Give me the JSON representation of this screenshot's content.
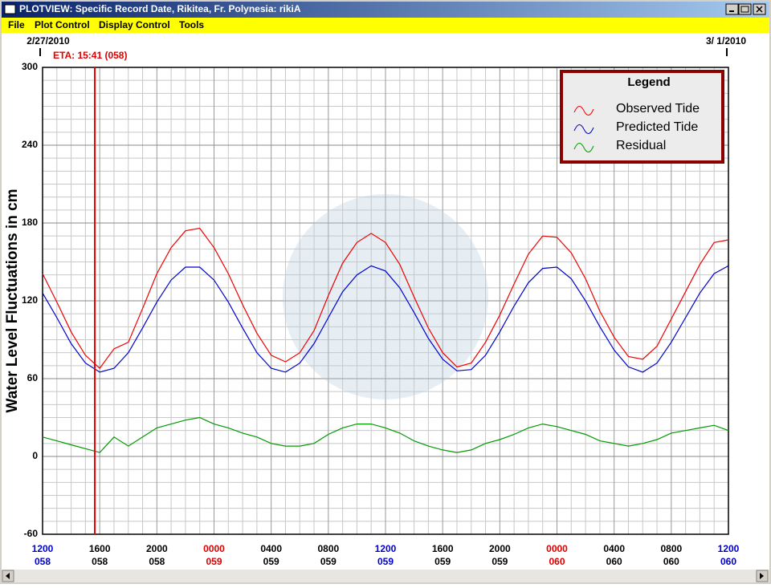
{
  "window": {
    "title": "PLOTVIEW: Specific Record Date, Rikitea, Fr. Polynesia: rikiA"
  },
  "menu": [
    "File",
    "Plot Control",
    "Display Control",
    "Tools"
  ],
  "dates": {
    "left": "2/27/2010",
    "right": "3/ 1/2010"
  },
  "annotation": "ETA: 15:41 (058)",
  "chart_data": {
    "type": "line",
    "ylabel": "Water Level Fluctuations in cm",
    "ylim": [
      -60,
      300
    ],
    "yticks": [
      -60,
      0,
      60,
      120,
      180,
      240,
      300
    ],
    "grid": true,
    "legend": {
      "title": "Legend",
      "position": "upper right"
    },
    "categories": [
      {
        "time": "1200",
        "day": "058",
        "color": "#0000cc"
      },
      null,
      null,
      null,
      {
        "time": "1600",
        "day": "058",
        "color": "#000000"
      },
      null,
      null,
      null,
      {
        "time": "2000",
        "day": "058",
        "color": "#000000"
      },
      null,
      null,
      null,
      {
        "time": "0000",
        "day": "059",
        "color": "#dd0000"
      },
      null,
      null,
      null,
      {
        "time": "0400",
        "day": "059",
        "color": "#000000"
      },
      null,
      null,
      null,
      {
        "time": "0800",
        "day": "059",
        "color": "#000000"
      },
      null,
      null,
      null,
      {
        "time": "1200",
        "day": "059",
        "color": "#0000cc"
      },
      null,
      null,
      null,
      {
        "time": "1600",
        "day": "059",
        "color": "#000000"
      },
      null,
      null,
      null,
      {
        "time": "2000",
        "day": "059",
        "color": "#000000"
      },
      null,
      null,
      null,
      {
        "time": "0000",
        "day": "060",
        "color": "#dd0000"
      },
      null,
      null,
      null,
      {
        "time": "0400",
        "day": "060",
        "color": "#000000"
      },
      null,
      null,
      null,
      {
        "time": "0800",
        "day": "060",
        "color": "#000000"
      },
      null,
      null,
      null,
      {
        "time": "1200",
        "day": "060",
        "color": "#0000cc"
      }
    ],
    "series": [
      {
        "name": "Observed Tide",
        "color": "#ee0000",
        "values": [
          141,
          119,
          96,
          78,
          68,
          83,
          88,
          114,
          141,
          161,
          174,
          176,
          161,
          141,
          117,
          95,
          78,
          73,
          80,
          97,
          124,
          149,
          165,
          172,
          165,
          148,
          123,
          99,
          80,
          69,
          72,
          88,
          109,
          133,
          156,
          170,
          169,
          157,
          137,
          112,
          92,
          77,
          75,
          85,
          106,
          127,
          148,
          165,
          167
        ]
      },
      {
        "name": "Predicted Tide",
        "color": "#0000cc",
        "values": [
          126,
          107,
          87,
          72,
          65,
          68,
          80,
          99,
          119,
          136,
          146,
          146,
          136,
          119,
          99,
          80,
          68,
          65,
          72,
          87,
          107,
          127,
          140,
          147,
          143,
          130,
          111,
          91,
          75,
          66,
          67,
          78,
          96,
          116,
          134,
          145,
          146,
          137,
          120,
          100,
          82,
          69,
          65,
          72,
          88,
          107,
          126,
          141,
          147
        ]
      },
      {
        "name": "Residual",
        "color": "#009900",
        "values": [
          15,
          12,
          9,
          6,
          3,
          15,
          8,
          15,
          22,
          25,
          28,
          30,
          25,
          22,
          18,
          15,
          10,
          8,
          8,
          10,
          17,
          22,
          25,
          25,
          22,
          18,
          12,
          8,
          5,
          3,
          5,
          10,
          13,
          17,
          22,
          25,
          23,
          20,
          17,
          12,
          10,
          8,
          10,
          13,
          18,
          20,
          22,
          24,
          20
        ]
      }
    ]
  }
}
